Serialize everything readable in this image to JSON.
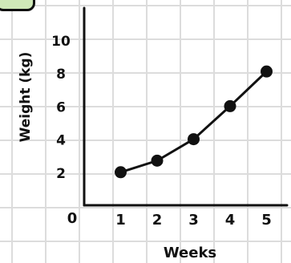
{
  "chart_data": {
    "type": "line",
    "x": [
      1,
      2,
      3,
      4,
      5
    ],
    "values": [
      2,
      2.7,
      4,
      6,
      8.1
    ],
    "xlabel": "Weeks",
    "ylabel": "Weight (kg)",
    "x_ticks": [
      "1",
      "2",
      "3",
      "4",
      "5"
    ],
    "y_ticks": [
      "2",
      "4",
      "6",
      "8",
      "10"
    ],
    "origin_label": "0",
    "xlim": [
      0,
      5.6
    ],
    "ylim": [
      0,
      11.5
    ],
    "grid": true,
    "colors": {
      "line": "#111111",
      "marker": "#111111",
      "grid": "#dcdcdc",
      "corner_box": "#cfe9b8"
    }
  }
}
